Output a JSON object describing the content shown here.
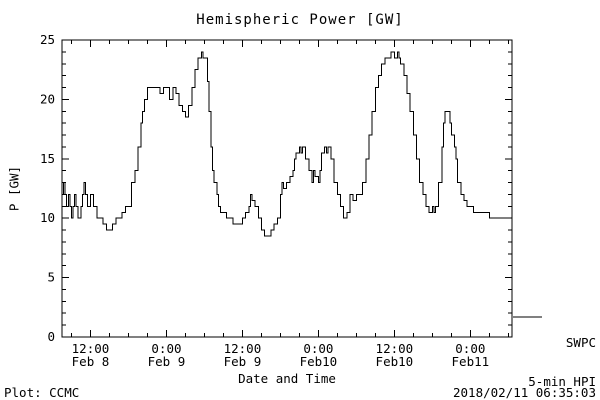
{
  "footer": {
    "left": "Plot: CCMC",
    "right": "2018/02/11 06:35:03"
  },
  "chart_data": {
    "type": "line",
    "style": "step",
    "title": "Hemispheric Power [GW]",
    "xlabel": "Date and Time",
    "ylabel": "P [GW]",
    "line_color": "#000000",
    "background": "#ffffff",
    "grid": false,
    "ylim": [
      0,
      25
    ],
    "yticks": [
      0,
      5,
      10,
      15,
      20,
      25
    ],
    "y_minor_step": 1,
    "x_unit": "hours since 2018-02-08 00:00",
    "xlim": [
      7.5,
      78.58
    ],
    "x_minor_step": 3,
    "xticks": [
      {
        "hour": 12,
        "time": "12:00",
        "date": "Feb 8"
      },
      {
        "hour": 24,
        "time": "0:00",
        "date": "Feb 9"
      },
      {
        "hour": 36,
        "time": "12:00",
        "date": "Feb 9"
      },
      {
        "hour": 48,
        "time": "0:00",
        "date": "Feb10"
      },
      {
        "hour": 60,
        "time": "12:00",
        "date": "Feb10"
      },
      {
        "hour": 72,
        "time": "0:00",
        "date": "Feb11"
      }
    ],
    "legend": {
      "label": "SWPC",
      "sublabel": "5-min HPI",
      "position": "right-outside"
    },
    "series": [
      {
        "name": "SWPC 5-min HPI",
        "points": [
          [
            7.5,
            12
          ],
          [
            7.75,
            13
          ],
          [
            8,
            12
          ],
          [
            8.25,
            11
          ],
          [
            8.5,
            12
          ],
          [
            8.75,
            11
          ],
          [
            9,
            10
          ],
          [
            9.25,
            11
          ],
          [
            9.5,
            12
          ],
          [
            9.75,
            11
          ],
          [
            10,
            10
          ],
          [
            10.5,
            11
          ],
          [
            10.75,
            12
          ],
          [
            11,
            13
          ],
          [
            11.25,
            12
          ],
          [
            11.5,
            11
          ],
          [
            12,
            12
          ],
          [
            12.5,
            11
          ],
          [
            13,
            10
          ],
          [
            13.5,
            10
          ],
          [
            14,
            9.5
          ],
          [
            14.5,
            9
          ],
          [
            15,
            9
          ],
          [
            15.5,
            9.5
          ],
          [
            16,
            10
          ],
          [
            16.5,
            10
          ],
          [
            17,
            10.5
          ],
          [
            17.5,
            11
          ],
          [
            18,
            11
          ],
          [
            18.5,
            13
          ],
          [
            19,
            14
          ],
          [
            19.5,
            16
          ],
          [
            20,
            18
          ],
          [
            20.25,
            19
          ],
          [
            20.5,
            20
          ],
          [
            21,
            21
          ],
          [
            21.5,
            21
          ],
          [
            22,
            21
          ],
          [
            22.5,
            21
          ],
          [
            23,
            20.5
          ],
          [
            23.5,
            21
          ],
          [
            24,
            21
          ],
          [
            24.5,
            20
          ],
          [
            25,
            21
          ],
          [
            25.5,
            20.5
          ],
          [
            26,
            19.5
          ],
          [
            26.5,
            19
          ],
          [
            27,
            18.5
          ],
          [
            27.5,
            19.5
          ],
          [
            28,
            21
          ],
          [
            28.5,
            22.5
          ],
          [
            29,
            23.5
          ],
          [
            29.5,
            24
          ],
          [
            29.75,
            23.5
          ],
          [
            30,
            23.5
          ],
          [
            30.5,
            21.5
          ],
          [
            30.75,
            19
          ],
          [
            31,
            16
          ],
          [
            31.25,
            14
          ],
          [
            31.5,
            13
          ],
          [
            32,
            12
          ],
          [
            32.25,
            11
          ],
          [
            32.5,
            10.5
          ],
          [
            33,
            10.5
          ],
          [
            33.5,
            10
          ],
          [
            34,
            10
          ],
          [
            34.5,
            9.5
          ],
          [
            35,
            9.5
          ],
          [
            35.5,
            9.5
          ],
          [
            36,
            10
          ],
          [
            36.5,
            10.5
          ],
          [
            37,
            11
          ],
          [
            37.25,
            12
          ],
          [
            37.5,
            11.5
          ],
          [
            38,
            11
          ],
          [
            38.5,
            10
          ],
          [
            39,
            9
          ],
          [
            39.5,
            8.5
          ],
          [
            40,
            8.5
          ],
          [
            40.5,
            9
          ],
          [
            41,
            9.5
          ],
          [
            41.5,
            10
          ],
          [
            42,
            12
          ],
          [
            42.25,
            13
          ],
          [
            42.5,
            12.5
          ],
          [
            43,
            13
          ],
          [
            43.5,
            13.5
          ],
          [
            44,
            14
          ],
          [
            44.25,
            15
          ],
          [
            44.5,
            15.5
          ],
          [
            45,
            16
          ],
          [
            45.25,
            15.5
          ],
          [
            45.5,
            16
          ],
          [
            46,
            15
          ],
          [
            46.5,
            14
          ],
          [
            47,
            13
          ],
          [
            47.25,
            14
          ],
          [
            47.5,
            13.5
          ],
          [
            48,
            13
          ],
          [
            48.25,
            14
          ],
          [
            48.5,
            15.5
          ],
          [
            49,
            16
          ],
          [
            49.25,
            15.5
          ],
          [
            49.5,
            16
          ],
          [
            50,
            15
          ],
          [
            50.5,
            13
          ],
          [
            51,
            12
          ],
          [
            51.5,
            11
          ],
          [
            52,
            10
          ],
          [
            52.5,
            10.5
          ],
          [
            53,
            12
          ],
          [
            53.5,
            11.5
          ],
          [
            54,
            12
          ],
          [
            54.5,
            12
          ],
          [
            55,
            13
          ],
          [
            55.5,
            15
          ],
          [
            56,
            17
          ],
          [
            56.5,
            19
          ],
          [
            57,
            21
          ],
          [
            57.5,
            22
          ],
          [
            58,
            23
          ],
          [
            58.5,
            23.5
          ],
          [
            59,
            23.5
          ],
          [
            59.5,
            24
          ],
          [
            60,
            23.5
          ],
          [
            60.5,
            24
          ],
          [
            60.75,
            23.5
          ],
          [
            61,
            23
          ],
          [
            61.5,
            22
          ],
          [
            62,
            20.5
          ],
          [
            62.5,
            19
          ],
          [
            63,
            17
          ],
          [
            63.5,
            15
          ],
          [
            64,
            13
          ],
          [
            64.5,
            12
          ],
          [
            65,
            11
          ],
          [
            65.5,
            10.5
          ],
          [
            66,
            11
          ],
          [
            66.25,
            10.5
          ],
          [
            66.5,
            11
          ],
          [
            67,
            13
          ],
          [
            67.5,
            16
          ],
          [
            67.75,
            18
          ],
          [
            68,
            19
          ],
          [
            68.5,
            19
          ],
          [
            68.75,
            18
          ],
          [
            69,
            17
          ],
          [
            69.5,
            16
          ],
          [
            69.75,
            15
          ],
          [
            70,
            13
          ],
          [
            70.5,
            12
          ],
          [
            71,
            11.5
          ],
          [
            71.5,
            11
          ],
          [
            72,
            11
          ],
          [
            72.5,
            10.5
          ],
          [
            73,
            10.5
          ],
          [
            73.5,
            10.5
          ],
          [
            74,
            10.5
          ],
          [
            74.5,
            10.5
          ],
          [
            75,
            10
          ],
          [
            76,
            10
          ],
          [
            77,
            10
          ],
          [
            78,
            10
          ],
          [
            78.58,
            10
          ]
        ]
      }
    ]
  }
}
